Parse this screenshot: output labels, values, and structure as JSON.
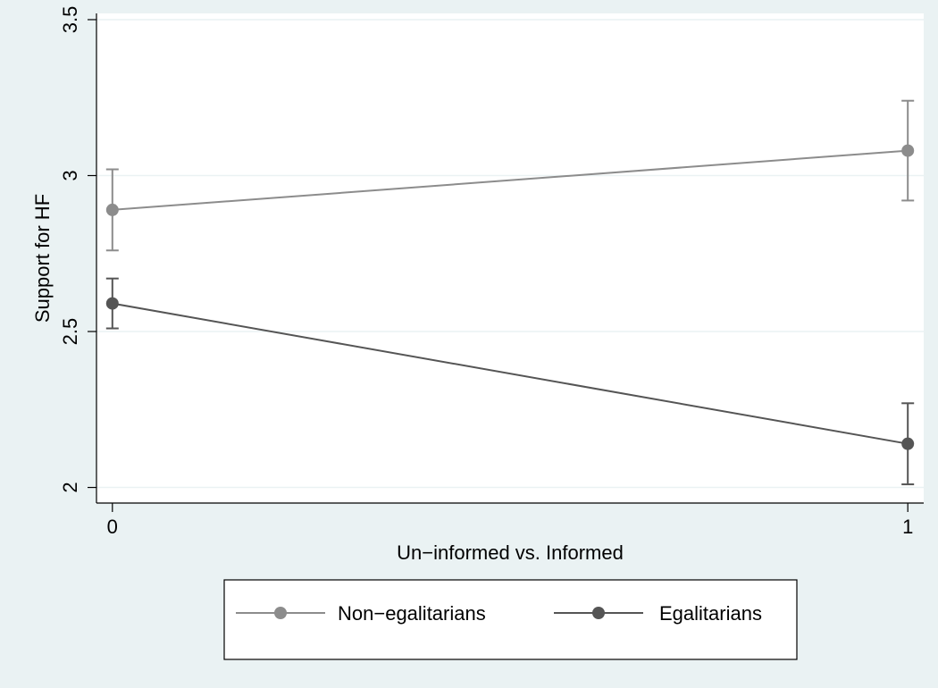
{
  "chart_data": {
    "type": "line",
    "xlabel": "Un−informed vs. Informed",
    "ylabel": "Support for HF",
    "x": [
      0,
      1
    ],
    "x_ticks": [
      "0",
      "1"
    ],
    "xlim": [
      -0.02,
      1.02
    ],
    "y_ticks": [
      "2",
      "2.5",
      "3",
      "3.5"
    ],
    "ylim": [
      1.95,
      3.52
    ],
    "grid": "horizontal",
    "legend_position": "bottom",
    "series": [
      {
        "name": "Non−egalitarians",
        "values": [
          2.89,
          3.08
        ],
        "ci_low": [
          2.76,
          2.92
        ],
        "ci_high": [
          3.02,
          3.24
        ],
        "color": "#8c8c8c"
      },
      {
        "name": "Egalitarians",
        "values": [
          2.59,
          2.14
        ],
        "ci_low": [
          2.51,
          2.01
        ],
        "ci_high": [
          2.67,
          2.27
        ],
        "color": "#555555"
      }
    ],
    "colors": {
      "outer_background": "#eaf2f3",
      "plot_background": "#ffffff",
      "grid": "#eaf2f3",
      "axis": "#000000"
    }
  }
}
